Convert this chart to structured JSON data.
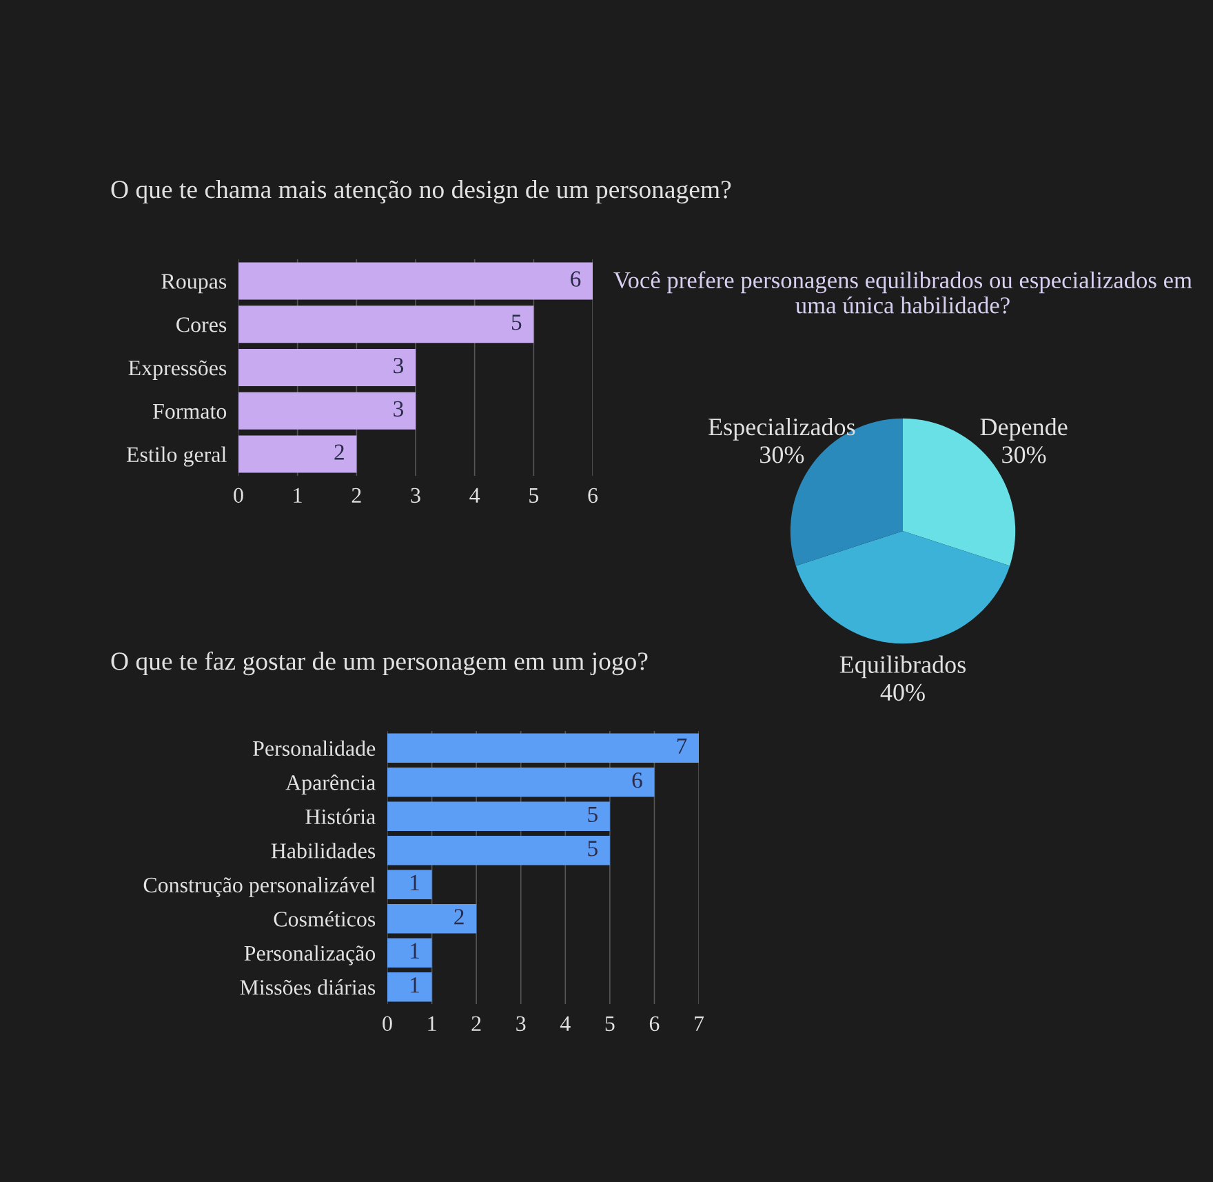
{
  "chart_data": [
    {
      "type": "bar",
      "orientation": "horizontal",
      "title": "O que te chama mais atenção no design de um personagem?",
      "categories": [
        "Roupas",
        "Cores",
        "Expressões",
        "Formato",
        "Estilo geral"
      ],
      "values": [
        6,
        5,
        3,
        3,
        2
      ],
      "color": "#c8aaf0",
      "xlim": [
        0,
        6
      ],
      "xticks": [
        0,
        1,
        2,
        3,
        4,
        5,
        6
      ],
      "grid": "x",
      "data_labels": true,
      "legend": false
    },
    {
      "type": "pie",
      "title": "Você prefere personagens equilibrados ou especializados em uma única habilidade?",
      "categories": [
        "Depende",
        "Equilibrados",
        "Especializados"
      ],
      "values": [
        30,
        40,
        30
      ],
      "value_labels": [
        "30%",
        "40%",
        "30%"
      ],
      "colors": [
        "#68e0e6",
        "#3cb2d8",
        "#2a8abb"
      ],
      "legend": false
    },
    {
      "type": "bar",
      "orientation": "horizontal",
      "title": "O que te faz gostar de um personagem em um jogo?",
      "categories": [
        "Personalidade",
        "Aparência",
        "História",
        "Habilidades",
        "Construção personalizável",
        "Cosméticos",
        "Personalização",
        "Missões diárias"
      ],
      "values": [
        7,
        6,
        5,
        5,
        1,
        2,
        1,
        1
      ],
      "color": "#5c9df5",
      "xlim": [
        0,
        7
      ],
      "xticks": [
        0,
        1,
        2,
        3,
        4,
        5,
        6,
        7
      ],
      "grid": "x",
      "data_labels": true,
      "legend": false
    }
  ]
}
